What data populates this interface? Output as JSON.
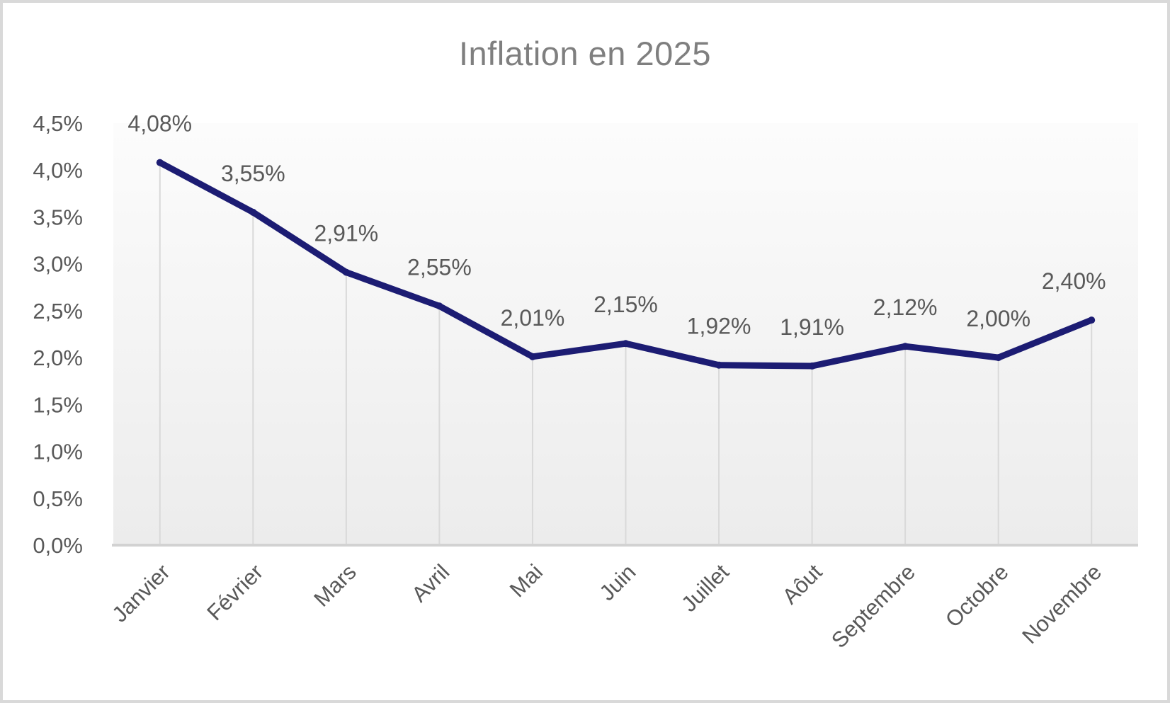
{
  "title": "Inflation en 2025",
  "chart_data": {
    "type": "line",
    "title": "Inflation en 2025",
    "categories": [
      "Janvier",
      "Février",
      "Mars",
      "Avril",
      "Mai",
      "Juin",
      "Juillet",
      "Aôut",
      "Septembre",
      "Octobre",
      "Novembre"
    ],
    "values": [
      4.08,
      3.55,
      2.91,
      2.55,
      2.01,
      2.15,
      1.92,
      1.91,
      2.12,
      2.0,
      2.4
    ],
    "data_labels": [
      "4,08%",
      "3,55%",
      "2,91%",
      "2,55%",
      "2,01%",
      "2,15%",
      "1,92%",
      "1,91%",
      "2,12%",
      "2,00%",
      "2,40%"
    ],
    "y_tick_labels": [
      "4,5%",
      "4,0%",
      "3,5%",
      "3,0%",
      "2,5%",
      "2,0%",
      "1,5%",
      "1,0%",
      "0,5%",
      "0,0%"
    ],
    "y_tick_values": [
      4.5,
      4.0,
      3.5,
      3.0,
      2.5,
      2.0,
      1.5,
      1.0,
      0.5,
      0.0
    ],
    "ylim": [
      0,
      4.5
    ],
    "xlabel": "",
    "ylabel": "",
    "legend": "none",
    "grid": "droplines",
    "colors": {
      "line": "#1c1c73",
      "marker": "#1c1c73",
      "axis_text": "#595959",
      "title_text": "#7f7f7f",
      "gridline": "#d9d9d9",
      "axis_line": "#d2d2d2",
      "plot_bg_top": "#fcfcfc",
      "plot_bg_bottom": "#ececec",
      "frame_border": "#d9d9d9"
    }
  }
}
